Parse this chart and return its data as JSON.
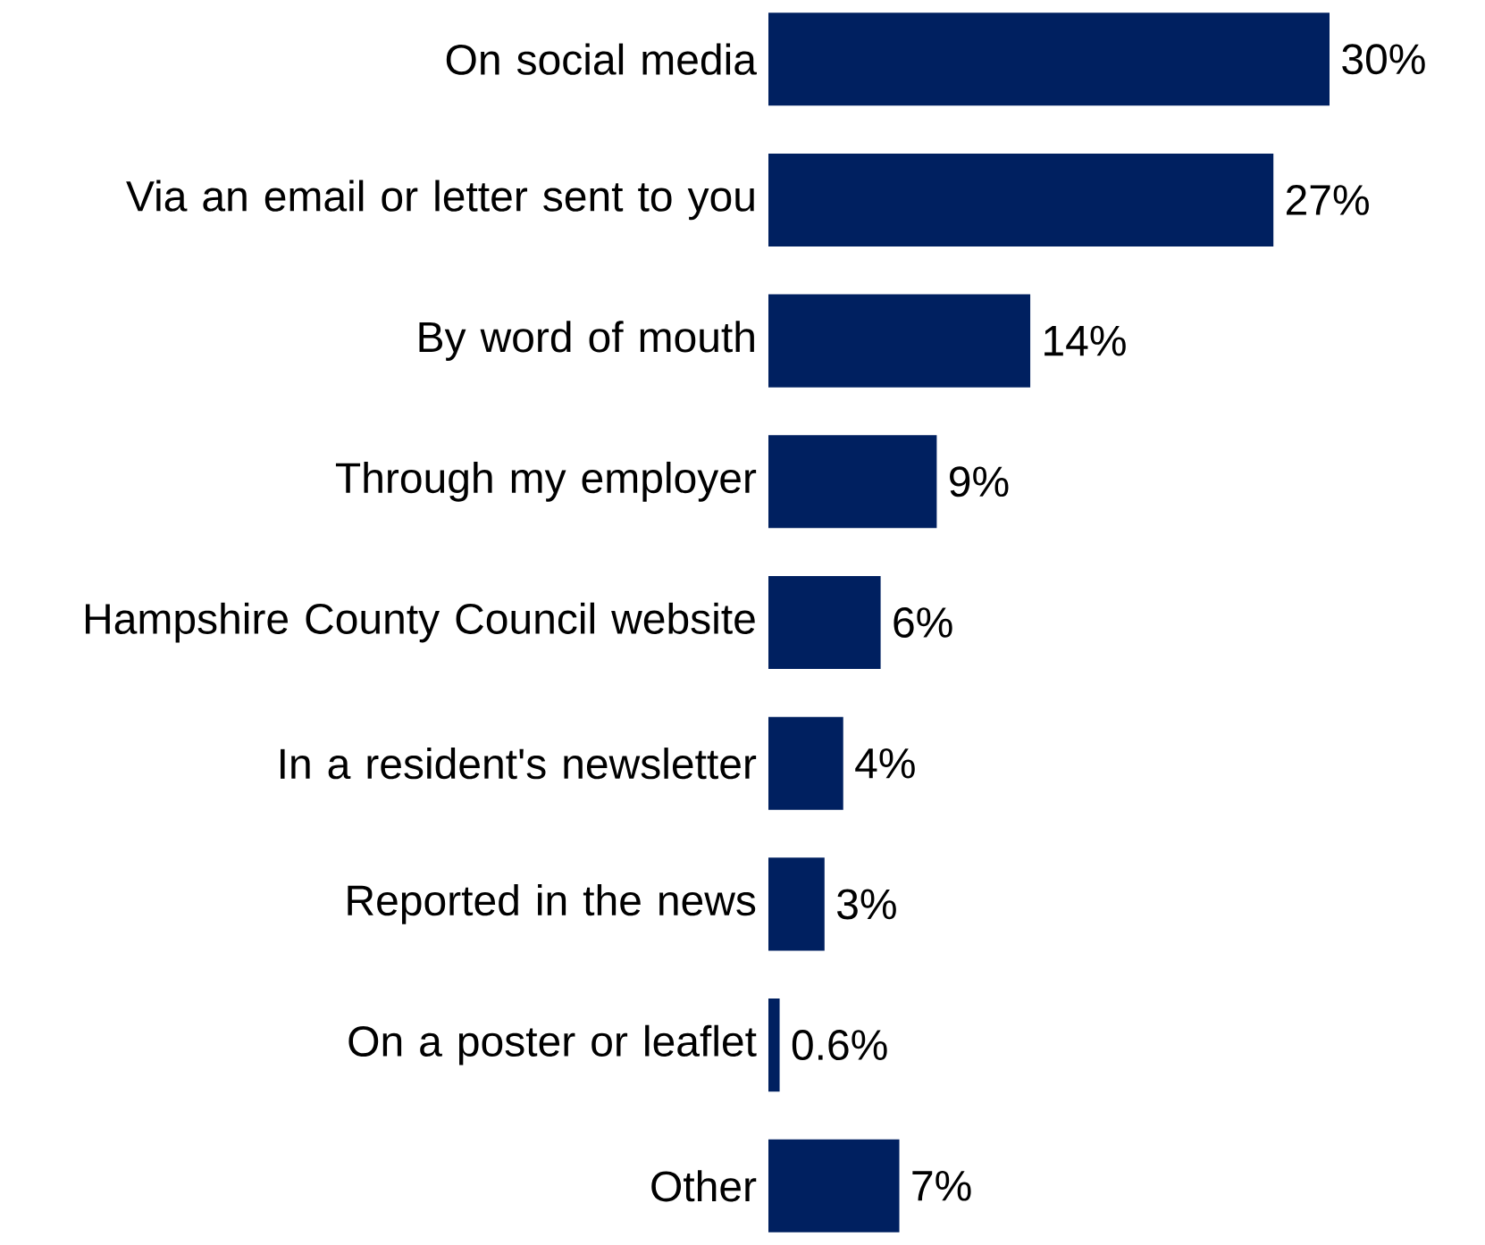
{
  "chart_data": {
    "type": "bar",
    "orientation": "horizontal",
    "categories": [
      "On social media",
      "Via an email or letter sent to you",
      "By word of mouth",
      "Through my employer",
      "Hampshire County Council website",
      "In a resident's newsletter",
      "Reported in the news",
      "On a poster or leaflet",
      "Other"
    ],
    "values": [
      30,
      27,
      14,
      9,
      6,
      4,
      3,
      0.6,
      7
    ],
    "value_labels": [
      "30%",
      "27%",
      "14%",
      "9%",
      "6%",
      "4%",
      "3%",
      "0.6%",
      "7%"
    ],
    "color": "#002060"
  }
}
